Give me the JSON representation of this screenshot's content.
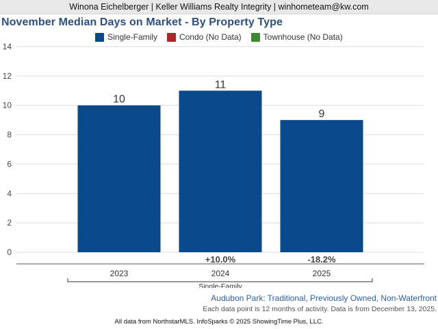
{
  "header": {
    "agent_line": "Winona Eichelberger | Keller Williams Realty Integrity | winhometeam@kw.com"
  },
  "legend": [
    {
      "label": "Single-Family",
      "color": "#0b4a8a"
    },
    {
      "label": "Condo (No Data)",
      "color": "#a52a2a"
    },
    {
      "label": "Townhouse (No Data)",
      "color": "#3c8a32"
    }
  ],
  "chart_data": {
    "type": "bar",
    "title": "November Median Days on Market - By Property Type",
    "categories": [
      "2023",
      "2024",
      "2025"
    ],
    "group_label": "Single-Family",
    "series": [
      {
        "name": "Single-Family",
        "values": [
          10,
          11,
          9
        ],
        "color": "#0b4a8a"
      }
    ],
    "data_labels": [
      "10",
      "11",
      "9"
    ],
    "changes": [
      "",
      "+10.0%",
      "-18.2%"
    ],
    "ylim": [
      0,
      14
    ],
    "yticks": [
      0,
      2,
      4,
      6,
      8,
      10,
      12,
      14
    ],
    "grid": true,
    "xlabel": "",
    "ylabel": "",
    "legend_position": "top-center"
  },
  "footer": {
    "subtitle": "Audubon Park: Traditional, Previously Owned, Non-Waterfront",
    "note": "Each data point is 12 months of activity. Data is from December 13, 2025.",
    "credit": "All data from NorthstarMLS. InfoSparks © 2025 ShowingTime Plus, LLC."
  }
}
